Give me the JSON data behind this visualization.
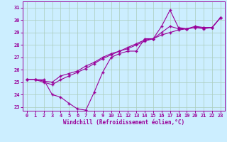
{
  "xlabel": "Windchill (Refroidissement éolien,°C)",
  "background_color": "#cceeff",
  "grid_color": "#aaccbb",
  "line_color": "#990099",
  "xlim": [
    -0.5,
    23.5
  ],
  "ylim": [
    22.7,
    31.5
  ],
  "xticks": [
    0,
    1,
    2,
    3,
    4,
    5,
    6,
    7,
    8,
    9,
    10,
    11,
    12,
    13,
    14,
    15,
    16,
    17,
    18,
    19,
    20,
    21,
    22,
    23
  ],
  "yticks": [
    23,
    24,
    25,
    26,
    27,
    28,
    29,
    30,
    31
  ],
  "series1_x": [
    0,
    1,
    2,
    3,
    4,
    5,
    6,
    7,
    8,
    9,
    10,
    11,
    12,
    13,
    14,
    15,
    16,
    17,
    18,
    19,
    20,
    21,
    22,
    23
  ],
  "series1_y": [
    25.2,
    25.2,
    25.2,
    24.0,
    23.8,
    23.3,
    22.85,
    22.75,
    24.2,
    25.8,
    27.0,
    27.3,
    27.5,
    27.5,
    28.5,
    28.5,
    29.5,
    30.8,
    29.4,
    29.3,
    29.5,
    29.4,
    29.4,
    30.2
  ],
  "series2_x": [
    0,
    1,
    2,
    3,
    4,
    5,
    6,
    7,
    8,
    9,
    10,
    11,
    12,
    13,
    14,
    15,
    16,
    17,
    18,
    19,
    20,
    21,
    22,
    23
  ],
  "series2_y": [
    25.2,
    25.2,
    25.1,
    25.0,
    25.5,
    25.7,
    25.9,
    26.3,
    26.6,
    27.0,
    27.3,
    27.5,
    27.7,
    28.0,
    28.3,
    28.5,
    28.8,
    29.0,
    29.2,
    29.3,
    29.4,
    29.4,
    29.4,
    30.2
  ],
  "series3_x": [
    0,
    1,
    2,
    3,
    4,
    5,
    6,
    7,
    8,
    9,
    10,
    11,
    12,
    13,
    14,
    15,
    16,
    17,
    18,
    19,
    20,
    21,
    22,
    23
  ],
  "series3_y": [
    25.2,
    25.2,
    25.0,
    24.8,
    25.2,
    25.5,
    25.8,
    26.1,
    26.5,
    26.9,
    27.2,
    27.5,
    27.8,
    28.1,
    28.4,
    28.5,
    29.0,
    29.5,
    29.3,
    29.3,
    29.4,
    29.3,
    29.4,
    30.2
  ]
}
